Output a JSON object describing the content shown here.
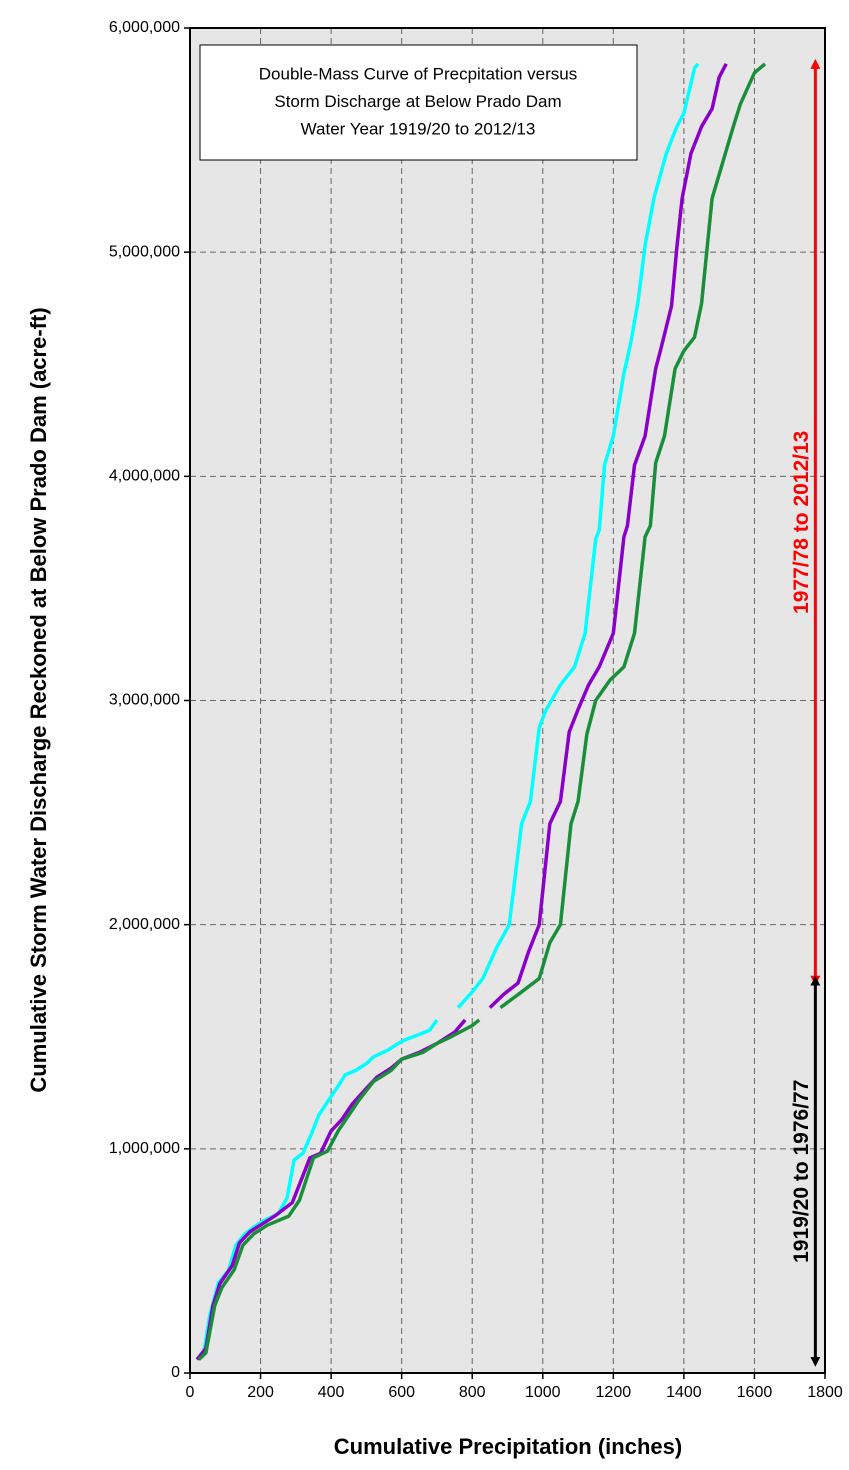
{
  "chart_data": {
    "type": "line",
    "title": [
      "Double-Mass Curve of Precpitation versus",
      "Storm Discharge at Below Prado Dam",
      "Water Year 1919/20 to 2012/13"
    ],
    "x_label": "Cumulative Precipitation (inches)",
    "y_label": "Cumulative Storm Water Discharge Reckoned at Below Prado Dam (acre-ft)",
    "xlim": [
      0,
      1800
    ],
    "ylim": [
      0,
      6000000
    ],
    "xticks": [
      0,
      200,
      400,
      600,
      800,
      1000,
      1200,
      1400,
      1600,
      1800
    ],
    "yticks": [
      0,
      {
        "value": 1000000,
        "label": "1,000,000"
      },
      {
        "value": 2000000,
        "label": "2,000,000"
      },
      {
        "value": 3000000,
        "label": "3,000,000"
      },
      {
        "value": 4000000,
        "label": "4,000,000"
      },
      {
        "value": 5000000,
        "label": "5,000,000"
      },
      {
        "value": 6000000,
        "label": "6,000,000"
      }
    ],
    "grid": true,
    "series": [
      {
        "color": "#00ffff",
        "x": [
          20,
          40,
          55,
          80,
          110,
          130,
          155,
          180,
          210,
          250,
          275,
          295,
          320,
          345,
          365,
          390,
          420,
          440,
          470,
          500,
          520,
          560,
          590,
          615,
          650,
          680,
          700,
          null,
          760,
          800,
          830,
          870,
          905,
          940,
          965,
          990,
          1010,
          1050,
          1090,
          1120,
          1150,
          1160,
          1175,
          1200,
          1230,
          1250,
          1270,
          1290,
          1315,
          1350,
          1380,
          1400,
          1430,
          1440
        ],
        "values": [
          60000,
          100000,
          250000,
          400000,
          460000,
          570000,
          620000,
          650000,
          680000,
          710000,
          780000,
          950000,
          980000,
          1070000,
          1150000,
          1210000,
          1280000,
          1330000,
          1350000,
          1380000,
          1410000,
          1440000,
          1470000,
          1490000,
          1510000,
          1530000,
          1575000,
          null,
          1630000,
          1700000,
          1760000,
          1900000,
          2000000,
          2450000,
          2550000,
          2880000,
          2960000,
          3070000,
          3150000,
          3300000,
          3720000,
          3760000,
          4050000,
          4180000,
          4460000,
          4600000,
          4780000,
          5030000,
          5240000,
          5440000,
          5560000,
          5620000,
          5820000,
          5840000
        ]
      },
      {
        "color": "#8b00c9",
        "x": [
          20,
          45,
          65,
          85,
          120,
          140,
          170,
          200,
          240,
          290,
          340,
          370,
          400,
          430,
          460,
          500,
          530,
          570,
          600,
          650,
          700,
          750,
          780,
          null,
          850,
          890,
          930,
          960,
          990,
          1020,
          1050,
          1075,
          1100,
          1130,
          1160,
          1200,
          1230,
          1240,
          1260,
          1290,
          1320,
          1335,
          1365,
          1380,
          1395,
          1420,
          1450,
          1480,
          1500,
          1520
        ],
        "values": [
          60000,
          110000,
          300000,
          400000,
          480000,
          580000,
          630000,
          660000,
          700000,
          760000,
          960000,
          980000,
          1080000,
          1130000,
          1200000,
          1270000,
          1320000,
          1360000,
          1400000,
          1430000,
          1470000,
          1520000,
          1575000,
          null,
          1630000,
          1690000,
          1740000,
          1880000,
          2000000,
          2450000,
          2550000,
          2860000,
          2960000,
          3070000,
          3150000,
          3300000,
          3730000,
          3780000,
          4050000,
          4180000,
          4480000,
          4570000,
          4760000,
          5020000,
          5240000,
          5440000,
          5560000,
          5640000,
          5780000,
          5840000
        ]
      },
      {
        "color": "#1a8f3a",
        "x": [
          25,
          45,
          70,
          90,
          125,
          150,
          180,
          220,
          280,
          310,
          350,
          390,
          420,
          450,
          480,
          520,
          570,
          600,
          660,
          700,
          740,
          800,
          820,
          null,
          880,
          940,
          990,
          1020,
          1050,
          1080,
          1100,
          1125,
          1150,
          1190,
          1230,
          1260,
          1290,
          1305,
          1320,
          1345,
          1375,
          1400,
          1430,
          1450,
          1480,
          1510,
          1540,
          1560,
          1600,
          1630
        ],
        "values": [
          60000,
          90000,
          300000,
          380000,
          460000,
          570000,
          620000,
          660000,
          700000,
          770000,
          960000,
          990000,
          1080000,
          1150000,
          1220000,
          1300000,
          1350000,
          1400000,
          1430000,
          1470000,
          1500000,
          1550000,
          1575000,
          null,
          1630000,
          1700000,
          1760000,
          1920000,
          2000000,
          2450000,
          2550000,
          2850000,
          3000000,
          3090000,
          3150000,
          3300000,
          3730000,
          3780000,
          4060000,
          4180000,
          4480000,
          4560000,
          4620000,
          4770000,
          5240000,
          5400000,
          5560000,
          5660000,
          5800000,
          5840000
        ]
      }
    ],
    "annotations": [
      {
        "text": "1977/78 to 2012/13",
        "color": "#ff0000",
        "x": 1750,
        "span": [
          1750000,
          5840000
        ]
      },
      {
        "text": "1919/20 to 1976/77",
        "color": "#000000",
        "x": 1750,
        "span": [
          50000,
          1750000
        ]
      }
    ]
  }
}
